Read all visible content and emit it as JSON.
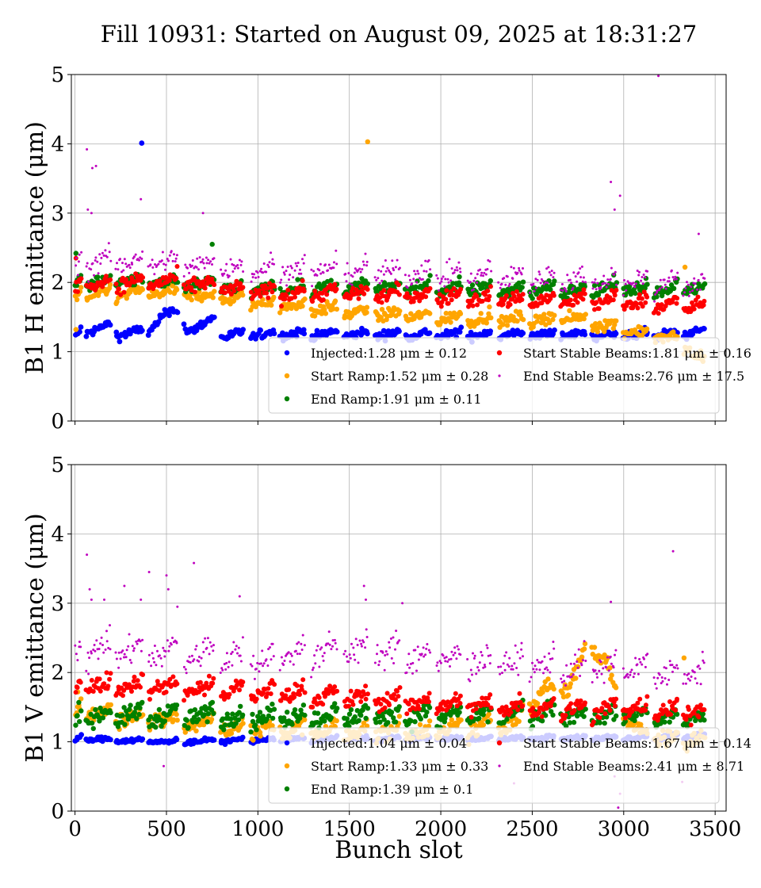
{
  "figure": {
    "title": "Fill 10931: Started on August 09, 2025 at 18:31:27",
    "xlabel": "Bunch slot"
  },
  "colors": {
    "Injected": "#0000ff",
    "Start Ramp": "#ffa500",
    "End Ramp": "#008000",
    "Start Stable Beams": "#ff0000",
    "End Stable Beams": "#bf00bf"
  },
  "chart_data": [
    {
      "type": "scatter",
      "ylabel": "B1 H emittance (μm)",
      "xlim": [
        -20,
        3560
      ],
      "ylim": [
        0,
        5
      ],
      "xticks": [
        0,
        500,
        1000,
        1500,
        2000,
        2500,
        3000,
        3500
      ],
      "yticks": [
        0,
        1,
        2,
        3,
        4,
        5
      ],
      "show_xtick_labels": false,
      "grid": true,
      "legend_position": "lower-right",
      "trains": [
        [
          0,
          30
        ],
        [
          60,
          195
        ],
        [
          222,
          370
        ],
        [
          400,
          560
        ],
        [
          595,
          760
        ],
        [
          795,
          920
        ],
        [
          960,
          1090
        ],
        [
          1120,
          1255
        ],
        [
          1290,
          1430
        ],
        [
          1470,
          1600
        ],
        [
          1640,
          1775
        ],
        [
          1805,
          1940
        ],
        [
          1975,
          2110
        ],
        [
          2145,
          2275
        ],
        [
          2315,
          2450
        ],
        [
          2485,
          2620
        ],
        [
          2655,
          2790
        ],
        [
          2825,
          2960
        ],
        [
          2995,
          3130
        ],
        [
          3165,
          3295
        ],
        [
          3325,
          3440
        ]
      ],
      "series": [
        {
          "name": "Injected",
          "legend_label": "Injected:1.28 μm ± 0.12",
          "level": [
            [
              0,
              1.26
            ],
            [
              200,
              1.38
            ],
            [
              230,
              1.26
            ],
            [
              400,
              1.3
            ],
            [
              500,
              1.58
            ],
            [
              580,
              1.55
            ],
            [
              610,
              1.3
            ],
            [
              760,
              1.46
            ],
            [
              800,
              1.24
            ],
            [
              1100,
              1.26
            ],
            [
              2000,
              1.25
            ],
            [
              2700,
              1.25
            ],
            [
              3000,
              1.24
            ],
            [
              3300,
              1.26
            ],
            [
              3440,
              1.29
            ]
          ],
          "spread": 0.06,
          "outliers": [
            [
              365,
              4.01
            ]
          ]
        },
        {
          "name": "Start Ramp",
          "legend_label": "Start Ramp:1.52 μm ± 0.28",
          "level": [
            [
              0,
              1.82
            ],
            [
              500,
              1.86
            ],
            [
              1000,
              1.72
            ],
            [
              1500,
              1.58
            ],
            [
              2000,
              1.49
            ],
            [
              2500,
              1.46
            ],
            [
              2700,
              1.5
            ],
            [
              2900,
              1.38
            ],
            [
              3000,
              1.33
            ],
            [
              3300,
              1.16
            ],
            [
              3440,
              0.84
            ]
          ],
          "spread": 0.08,
          "outliers": [
            [
              1600,
              4.03
            ],
            [
              3335,
              2.22
            ],
            [
              5,
              1.32
            ]
          ]
        },
        {
          "name": "End Ramp",
          "legend_label": "End Ramp:1.91 μm ± 0.11",
          "level": [
            [
              0,
              2.0
            ],
            [
              500,
              2.02
            ],
            [
              1000,
              1.9
            ],
            [
              1500,
              1.93
            ],
            [
              2000,
              1.92
            ],
            [
              2500,
              1.9
            ],
            [
              3000,
              1.92
            ],
            [
              3440,
              1.9
            ]
          ],
          "spread": 0.09,
          "outliers": [
            [
              5,
              2.42
            ],
            [
              750,
              2.55
            ]
          ]
        },
        {
          "name": "Start Stable Beams",
          "legend_label": "Start Stable Beams:1.81 μm ± 0.16",
          "level": [
            [
              0,
              1.98
            ],
            [
              500,
              2.02
            ],
            [
              1000,
              1.86
            ],
            [
              1500,
              1.85
            ],
            [
              2000,
              1.8
            ],
            [
              2500,
              1.74
            ],
            [
              3000,
              1.73
            ],
            [
              3440,
              1.64
            ]
          ],
          "spread": 0.1,
          "outliers": [
            [
              5,
              2.35
            ]
          ]
        },
        {
          "name": "End Stable Beams",
          "legend_label": "End Stable Beams:2.76 μm ± 17.5",
          "level": [
            [
              0,
              2.3
            ],
            [
              500,
              2.3
            ],
            [
              1000,
              2.2
            ],
            [
              1500,
              2.18
            ],
            [
              2000,
              2.12
            ],
            [
              2500,
              2.06
            ],
            [
              3000,
              2.03
            ],
            [
              3440,
              1.97
            ]
          ],
          "spread": 0.15,
          "outliers": [
            [
              65,
              3.92
            ],
            [
              95,
              3.65
            ],
            [
              115,
              3.68
            ],
            [
              70,
              3.05
            ],
            [
              90,
              3.0
            ],
            [
              360,
              3.2
            ],
            [
              700,
              3.0
            ],
            [
              2930,
              3.45
            ],
            [
              2950,
              3.05
            ],
            [
              2980,
              3.25
            ],
            [
              3190,
              4.98
            ],
            [
              3410,
              2.7
            ]
          ]
        }
      ]
    },
    {
      "type": "scatter",
      "ylabel": "B1 V emittance (μm)",
      "xlim": [
        -20,
        3560
      ],
      "ylim": [
        0,
        5
      ],
      "xticks": [
        0,
        500,
        1000,
        1500,
        2000,
        2500,
        3000,
        3500
      ],
      "yticks": [
        0,
        1,
        2,
        3,
        4,
        5
      ],
      "show_xtick_labels": true,
      "grid": true,
      "legend_position": "lower-right",
      "trains": [
        [
          0,
          30
        ],
        [
          60,
          195
        ],
        [
          222,
          370
        ],
        [
          400,
          560
        ],
        [
          595,
          760
        ],
        [
          795,
          920
        ],
        [
          960,
          1090
        ],
        [
          1120,
          1255
        ],
        [
          1290,
          1430
        ],
        [
          1470,
          1600
        ],
        [
          1640,
          1775
        ],
        [
          1805,
          1940
        ],
        [
          1975,
          2110
        ],
        [
          2145,
          2275
        ],
        [
          2315,
          2450
        ],
        [
          2485,
          2620
        ],
        [
          2655,
          2790
        ],
        [
          2825,
          2960
        ],
        [
          2995,
          3130
        ],
        [
          3165,
          3295
        ],
        [
          3325,
          3440
        ]
      ],
      "series": [
        {
          "name": "Injected",
          "legend_label": "Injected:1.04 μm ± 0.04",
          "level": [
            [
              0,
              1.05
            ],
            [
              500,
              1.0
            ],
            [
              1000,
              1.03
            ],
            [
              1500,
              1.04
            ],
            [
              2000,
              1.05
            ],
            [
              2500,
              1.05
            ],
            [
              3000,
              1.06
            ],
            [
              3440,
              1.08
            ]
          ],
          "spread": 0.03,
          "outliers": []
        },
        {
          "name": "Start Ramp",
          "legend_label": "Start Ramp:1.33 μm ± 0.33",
          "level": [
            [
              0,
              1.5
            ],
            [
              500,
              1.3
            ],
            [
              1000,
              1.18
            ],
            [
              1500,
              1.15
            ],
            [
              2000,
              1.15
            ],
            [
              2400,
              1.28
            ],
            [
              2560,
              1.75
            ],
            [
              2700,
              1.8
            ],
            [
              2800,
              2.4
            ],
            [
              2900,
              2.2
            ],
            [
              2980,
              1.5
            ],
            [
              3100,
              1.1
            ],
            [
              3440,
              1.0
            ]
          ],
          "spread": 0.12,
          "outliers": [
            [
              3330,
              2.21
            ],
            [
              15,
              1.72
            ]
          ]
        },
        {
          "name": "End Ramp",
          "legend_label": "End Ramp:1.39 μm ± 0.1",
          "level": [
            [
              0,
              1.4
            ],
            [
              500,
              1.38
            ],
            [
              1000,
              1.36
            ],
            [
              1500,
              1.38
            ],
            [
              2000,
              1.38
            ],
            [
              2500,
              1.4
            ],
            [
              3000,
              1.38
            ],
            [
              3440,
              1.32
            ]
          ],
          "spread": 0.13,
          "outliers": []
        },
        {
          "name": "Start Stable Beams",
          "legend_label": "Start Stable Beams:1.67 μm ± 0.14",
          "level": [
            [
              0,
              1.85
            ],
            [
              500,
              1.8
            ],
            [
              1000,
              1.72
            ],
            [
              1500,
              1.65
            ],
            [
              2000,
              1.55
            ],
            [
              2500,
              1.5
            ],
            [
              3000,
              1.48
            ],
            [
              3440,
              1.42
            ]
          ],
          "spread": 0.12,
          "outliers": []
        },
        {
          "name": "End Stable Beams",
          "legend_label": "End Stable Beams:2.41 μm ± 8.71",
          "level": [
            [
              0,
              2.35
            ],
            [
              500,
              2.3
            ],
            [
              1000,
              2.2
            ],
            [
              1500,
              2.35
            ],
            [
              2000,
              2.2
            ],
            [
              2500,
              2.12
            ],
            [
              3000,
              2.05
            ],
            [
              3440,
              1.95
            ]
          ],
          "spread": 0.2,
          "outliers": [
            [
              65,
              3.7
            ],
            [
              80,
              3.2
            ],
            [
              90,
              3.05
            ],
            [
              160,
              3.05
            ],
            [
              270,
              3.25
            ],
            [
              360,
              3.05
            ],
            [
              405,
              3.45
            ],
            [
              500,
              3.4
            ],
            [
              510,
              3.2
            ],
            [
              560,
              2.95
            ],
            [
              650,
              3.58
            ],
            [
              900,
              3.1
            ],
            [
              1580,
              3.25
            ],
            [
              1590,
              3.05
            ],
            [
              1790,
              3.0
            ],
            [
              2930,
              3.02
            ],
            [
              3270,
              3.75
            ],
            [
              485,
              0.65
            ],
            [
              2400,
              0.4
            ],
            [
              2950,
              0.5
            ],
            [
              2980,
              0.25
            ],
            [
              2970,
              0.05
            ],
            [
              3320,
              0.42
            ]
          ]
        }
      ]
    }
  ]
}
